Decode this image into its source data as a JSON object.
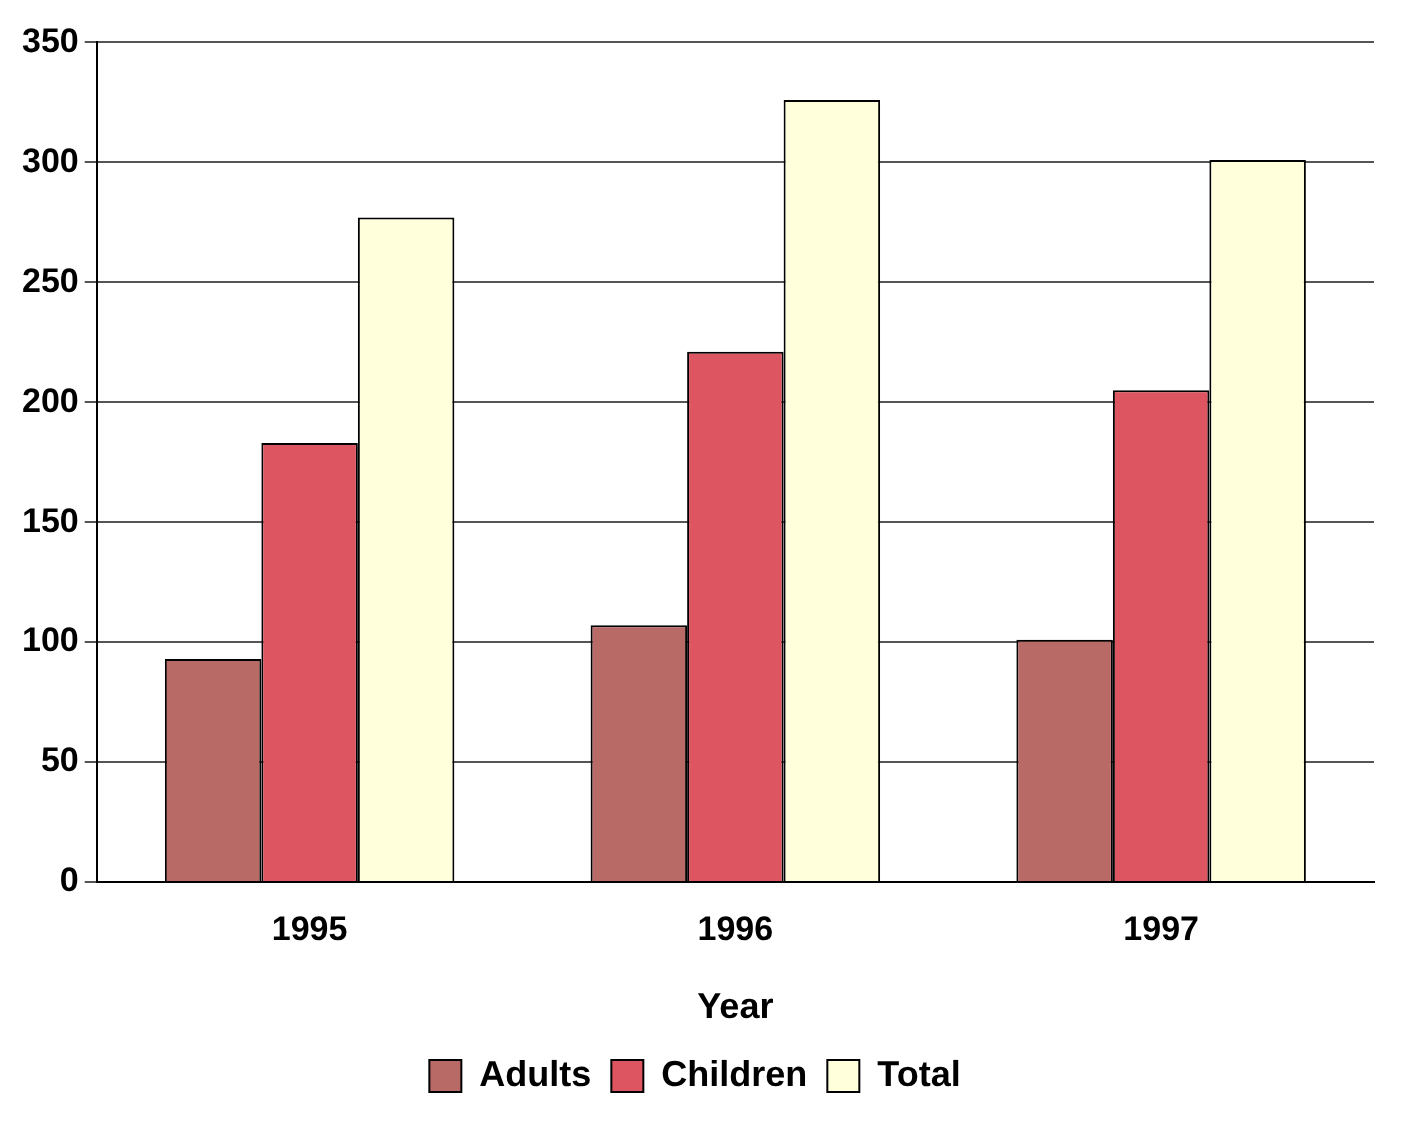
{
  "chart_data": {
    "type": "bar",
    "xlabel": "Year",
    "categories": [
      "1995",
      "1996",
      "1997"
    ],
    "series": [
      {
        "name": "Adults",
        "color": "#b86a66",
        "values": [
          93,
          107,
          101
        ]
      },
      {
        "name": "Children",
        "color": "#dc5560",
        "values": [
          183,
          221,
          205
        ]
      },
      {
        "name": "Total",
        "color": "#ffffdc",
        "values": [
          277,
          326,
          301
        ]
      }
    ],
    "ylim": [
      0,
      350
    ],
    "yticks": [
      0,
      50,
      100,
      150,
      200,
      250,
      300,
      350
    ],
    "grid": "y",
    "legend": "bottom"
  }
}
